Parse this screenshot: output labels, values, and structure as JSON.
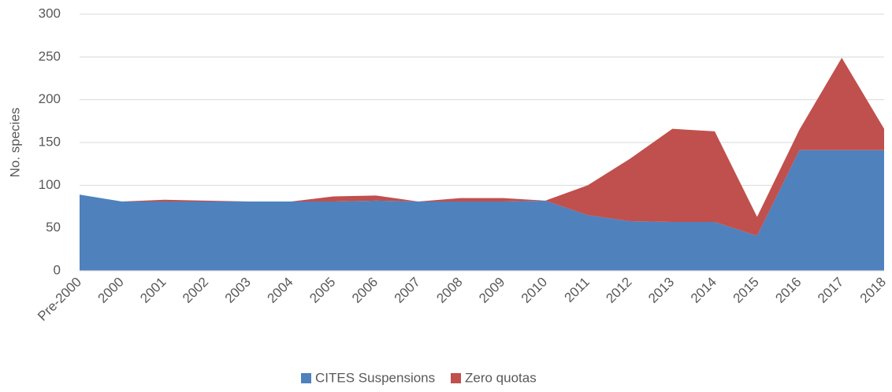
{
  "chart_data": {
    "type": "stacked_area",
    "y_axis_label": "No. species",
    "categories": [
      "Pre-2000",
      "2000",
      "2001",
      "2002",
      "2003",
      "2004",
      "2005",
      "2006",
      "2007",
      "2008",
      "2009",
      "2010",
      "2011",
      "2012",
      "2013",
      "2014",
      "2015",
      "2016",
      "2017",
      "2018"
    ],
    "series": [
      {
        "name": "CITES Suspensions",
        "color": "#4f81bd",
        "values": [
          89,
          81,
          81,
          81,
          81,
          81,
          81,
          82,
          81,
          81,
          81,
          82,
          65,
          58,
          57,
          57,
          41,
          141,
          141,
          141
        ]
      },
      {
        "name": "Zero quotas",
        "color": "#c0504d",
        "values": [
          0,
          0,
          2,
          1,
          0,
          0,
          6,
          6,
          0,
          4,
          4,
          0,
          35,
          73,
          109,
          106,
          22,
          24,
          108,
          25
        ]
      }
    ],
    "ylim": [
      0,
      300
    ],
    "yticks": [
      0,
      50,
      100,
      150,
      200,
      250,
      300
    ],
    "grid": true,
    "legend": "bottom"
  }
}
